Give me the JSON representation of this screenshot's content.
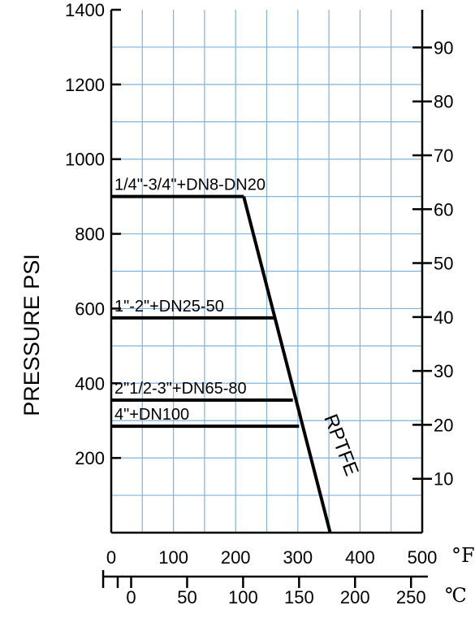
{
  "chart_data": {
    "type": "line",
    "ylabel": "PRESSURE  PSI",
    "x_unit_f": "°F",
    "x_unit_c": "℃",
    "xlim_f": [
      0,
      500
    ],
    "ylim_psi": [
      0,
      1400
    ],
    "ylim_bar": [
      0,
      97
    ],
    "x_ticks_f": [
      0,
      100,
      200,
      300,
      400,
      500
    ],
    "x_ticks_c": [
      0,
      50,
      100,
      150,
      200,
      250
    ],
    "y_ticks_psi": [
      200,
      400,
      600,
      800,
      1000,
      1200,
      1400
    ],
    "y_ticks_bar": [
      10,
      20,
      30,
      40,
      50,
      60,
      70,
      80,
      90
    ],
    "grid": true,
    "material_label": "RPTFE",
    "limit_line": {
      "name": "RPTFE",
      "x": [
        213,
        352
      ],
      "y": [
        900,
        0
      ]
    },
    "series": [
      {
        "name": "1/4\"-3/4\"+DN8-DN20",
        "x": [
          0,
          213
        ],
        "y": [
          900,
          900
        ]
      },
      {
        "name": "1\"-2\"+DN25-50",
        "x": [
          0,
          262
        ],
        "y": [
          575,
          575
        ]
      },
      {
        "name": "2\"1/2-3\"+DN65-80",
        "x": [
          0,
          292
        ],
        "y": [
          355,
          355
        ]
      },
      {
        "name": "4\"+DN100",
        "x": [
          0,
          302
        ],
        "y": [
          285,
          285
        ]
      }
    ]
  }
}
